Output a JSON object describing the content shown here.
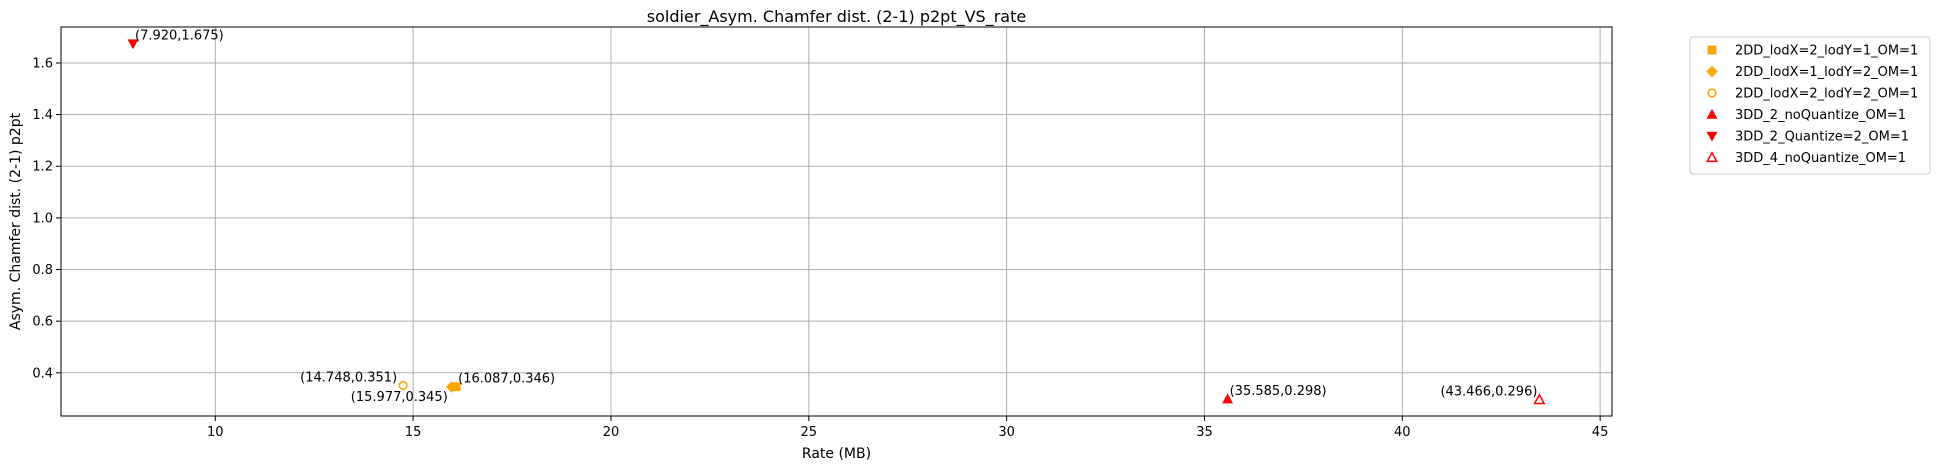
{
  "chart_data": {
    "type": "scatter",
    "title": "soldier_Asym. Chamfer dist. (2-1) p2pt_VS_rate",
    "xlabel": "Rate (MB)",
    "ylabel": "Asym. Chamfer dist. (2-1) p2pt",
    "xlim": [
      6.1,
      45.3
    ],
    "ylim": [
      0.2327,
      1.7393
    ],
    "xticks": [
      10,
      15,
      20,
      25,
      30,
      35,
      40,
      45
    ],
    "xtick_labels": [
      "10",
      "15",
      "20",
      "25",
      "30",
      "35",
      "40",
      "45"
    ],
    "yticks": [
      0.4,
      0.6,
      0.8,
      1.0,
      1.2,
      1.4,
      1.6
    ],
    "ytick_labels": [
      "0.4",
      "0.6",
      "0.8",
      "1.0",
      "1.2",
      "1.4",
      "1.6"
    ],
    "grid": true,
    "legend_position": "outside-top-right",
    "series": [
      {
        "name": "2DD_lodX=2_lodY=1_OM=1",
        "marker": "square",
        "color": "#ffa500",
        "filled": true,
        "points": [
          {
            "x": 16.087,
            "y": 0.346,
            "label": "(16.087,0.346)"
          }
        ]
      },
      {
        "name": "2DD_lodX=1_lodY=2_OM=1",
        "marker": "diamond",
        "color": "#ffa500",
        "filled": true,
        "points": [
          {
            "x": 15.977,
            "y": 0.345,
            "label": "(15.977,0.345)"
          }
        ]
      },
      {
        "name": "2DD_lodX=2_lodY=2_OM=1",
        "marker": "octagon",
        "color": "#ffa500",
        "filled": false,
        "points": [
          {
            "x": 14.748,
            "y": 0.351,
            "label": "(14.748,0.351)"
          }
        ]
      },
      {
        "name": "3DD_2_noQuantize_OM=1",
        "marker": "triangle-up",
        "color": "#ff0000",
        "filled": true,
        "points": [
          {
            "x": 35.585,
            "y": 0.298,
            "label": "(35.585,0.298)"
          }
        ]
      },
      {
        "name": "3DD_2_Quantize=2_OM=1",
        "marker": "triangle-down",
        "color": "#ff0000",
        "filled": true,
        "points": [
          {
            "x": 7.92,
            "y": 1.675,
            "label": "(7.920,1.675)"
          }
        ]
      },
      {
        "name": "3DD_4_noQuantize_OM=1",
        "marker": "triangle-up",
        "color": "#ff0000",
        "filled": false,
        "points": [
          {
            "x": 43.466,
            "y": 0.296,
            "label": "(43.466,0.296)"
          }
        ]
      }
    ]
  }
}
